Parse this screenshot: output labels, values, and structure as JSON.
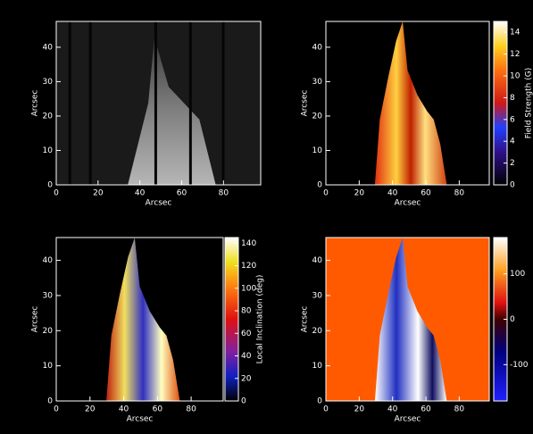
{
  "chart_data": [
    {
      "type": "image",
      "xlabel": "Arcsec",
      "ylabel": "Arcsec",
      "xlim": [
        0,
        97.8
      ],
      "ylim": [
        0,
        47.5
      ],
      "xticks": [
        0,
        20,
        40,
        60,
        80
      ],
      "yticks": [
        0,
        10,
        20,
        30,
        40
      ]
    },
    {
      "type": "image",
      "xlabel": "Arcsec",
      "ylabel": "Arcsec",
      "xlim": [
        0,
        98
      ],
      "ylim": [
        0,
        47.5
      ],
      "xticks": [
        0,
        20,
        40,
        60,
        80
      ],
      "yticks": [
        0,
        10,
        20,
        30,
        40
      ],
      "colorbar": {
        "label": "Field Strength (G)",
        "lim": [
          0,
          15
        ],
        "ticks": [
          0,
          2,
          4,
          6,
          8,
          10,
          12,
          14
        ]
      }
    },
    {
      "type": "image",
      "xlabel": "Arcsec",
      "ylabel": "Arcsec",
      "xlim": [
        0,
        99
      ],
      "ylim": [
        0,
        46.5
      ],
      "xticks": [
        0,
        20,
        40,
        60,
        80
      ],
      "yticks": [
        0,
        10,
        20,
        30,
        40
      ],
      "colorbar": {
        "label": "Local Inclination (deg)",
        "lim": [
          0,
          145
        ],
        "ticks": [
          0,
          20,
          40,
          60,
          80,
          100,
          120,
          140
        ]
      }
    },
    {
      "type": "image",
      "xlabel": "Arcsec",
      "ylabel": "Arcsec",
      "xlim": [
        0,
        98
      ],
      "ylim": [
        0,
        46.5
      ],
      "xticks": [
        0,
        20,
        40,
        60,
        80
      ],
      "yticks": [
        0,
        10,
        20,
        30,
        40
      ],
      "colorbar": {
        "lim": [
          -180,
          180
        ],
        "ticks": [
          -100,
          0,
          100
        ]
      }
    }
  ]
}
